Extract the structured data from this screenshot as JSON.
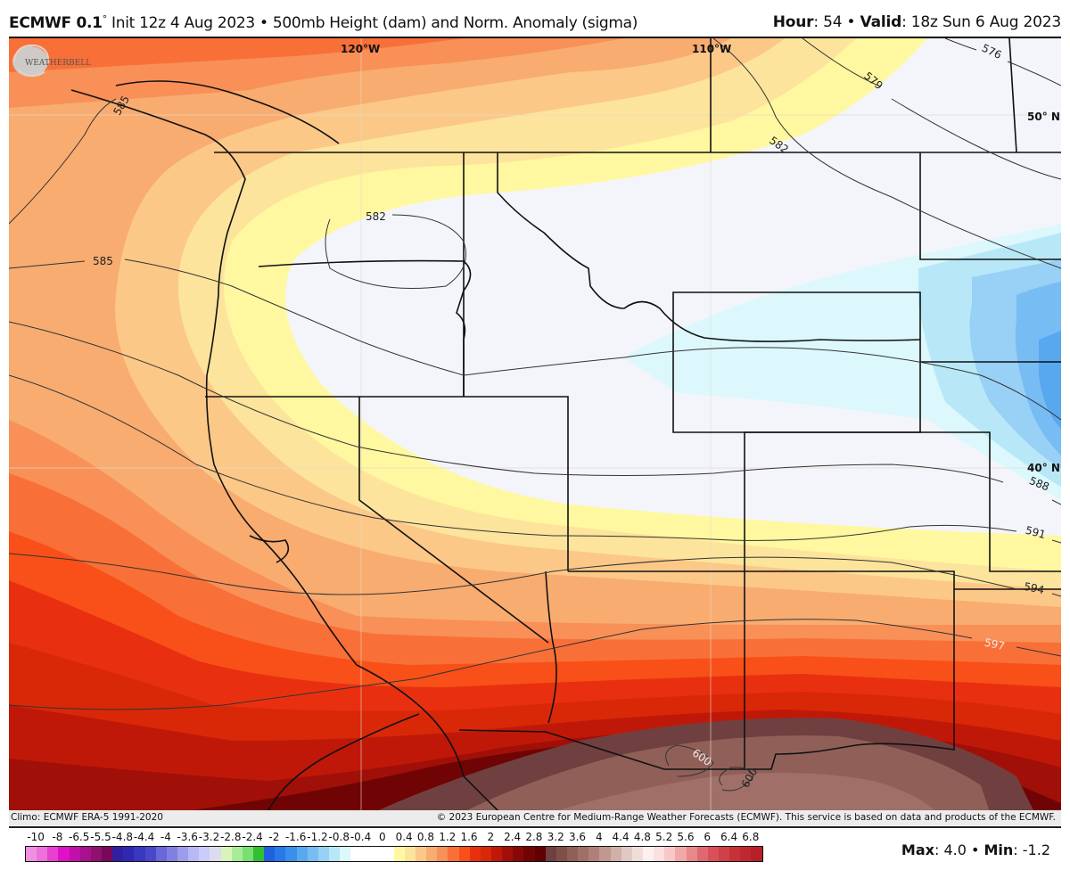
{
  "header": {
    "model": "ECMWF 0.1",
    "degree": "°",
    "description": " Init 12z 4 Aug 2023 • 500mb Height (dam) and Norm. Anomaly (sigma)",
    "hour_label": "Hour",
    "hour_value": ": 54 • ",
    "valid_label": "Valid",
    "valid_value": ": 18z Sun 6 Aug 2023"
  },
  "map": {
    "longitude_labels": [
      "120°W",
      "110°W"
    ],
    "latitude_labels": [
      "50° N",
      "40° N"
    ],
    "contour_labels": [
      "576",
      "579",
      "582",
      "582",
      "585",
      "585",
      "588",
      "591",
      "594",
      "597",
      "600",
      "600"
    ],
    "logo_text": "WEATHERBELL"
  },
  "footer": {
    "climo": "Climo: ECMWF ERA-5 1991-2020",
    "copyright": "© 2023 European Centre for Medium-Range Weather Forecasts (ECMWF). This service is based on data and products of the ECMWF."
  },
  "legend": {
    "tick_labels": [
      "-10",
      "-8",
      "-6.5",
      "-5.5",
      "-4.8",
      "-4.4",
      "-4",
      "-3.6",
      "-3.2",
      "-2.8",
      "-2.4",
      "-2",
      "-1.6",
      "-1.2",
      "-0.8",
      "-0.4",
      "0",
      "0.4",
      "0.8",
      "1.2",
      "1.6",
      "2",
      "2.4",
      "2.8",
      "3.2",
      "3.6",
      "4",
      "4.4",
      "4.8",
      "5.2",
      "5.6",
      "6",
      "6.4",
      "6.8"
    ],
    "colors": [
      "#f090e0",
      "#ee70dc",
      "#e840d0",
      "#e010c8",
      "#c010a8",
      "#a81090",
      "#901070",
      "#780858",
      "#3020a0",
      "#3028b0",
      "#3838c0",
      "#4848c8",
      "#6868d8",
      "#8080e0",
      "#9c9cec",
      "#b8b8f4",
      "#ccccf8",
      "#dcdcf0",
      "#d8f4b8",
      "#a8ec98",
      "#78e070",
      "#30c030",
      "#2060e0",
      "#2878e8",
      "#3890ec",
      "#58a8f0",
      "#78bcf4",
      "#98d0f6",
      "#b8e8f8",
      "#dcf8fc",
      "#ffffff",
      "#ffffff",
      "#ffffff",
      "#ffffff",
      "#fff8a0",
      "#fde49c",
      "#fcc888",
      "#f8ac70",
      "#f89058",
      "#f87038",
      "#f85018",
      "#e83010",
      "#d82808",
      "#c01808",
      "#a01008",
      "#880808",
      "#700404",
      "#600000",
      "#704040",
      "#805048",
      "#906058",
      "#a07068",
      "#b08078",
      "#c09890",
      "#d0b0a8",
      "#e0c8c4",
      "#f0dcd8",
      "#fff0f0",
      "#fce0e0",
      "#f8c8c8",
      "#f0a8a8",
      "#e88888",
      "#e06870",
      "#d85058",
      "#d04048",
      "#c83038",
      "#c02830",
      "#b82028"
    ],
    "max_label": "Max",
    "max_value": ": 4.0 • ",
    "min_label": "Min",
    "min_value": ": -1.2"
  },
  "chart_data": {
    "type": "heatmap",
    "title": "ECMWF 0.1° Init 12z 4 Aug 2023 • 500mb Height (dam) and Norm. Anomaly (sigma)",
    "subtitle": "Hour: 54 • Valid: 18z Sun 6 Aug 2023",
    "region": "Western United States / Pacific Northwest",
    "contour_variable": "500mb Height (dam)",
    "contour_levels": [
      576,
      579,
      582,
      585,
      588,
      591,
      594,
      597,
      600
    ],
    "fill_variable": "Normalized anomaly (sigma)",
    "colorbar_ticks": [
      -10,
      -8,
      -6.5,
      -5.5,
      -4.8,
      -4.4,
      -4,
      -3.6,
      -3.2,
      -2.8,
      -2.4,
      -2,
      -1.6,
      -1.2,
      -0.8,
      -0.4,
      0,
      0.4,
      0.8,
      1.2,
      1.6,
      2,
      2.4,
      2.8,
      3.2,
      3.6,
      4,
      4.4,
      4.8,
      5.2,
      5.6,
      6,
      6.4,
      6.8
    ],
    "max_anomaly": 4.0,
    "min_anomaly": -1.2,
    "graticule": {
      "longitudes": [
        "120°W",
        "110°W"
      ],
      "latitudes": [
        "50° N",
        "40° N"
      ]
    },
    "climatology": "ECMWF ERA-5 1991-2020"
  }
}
